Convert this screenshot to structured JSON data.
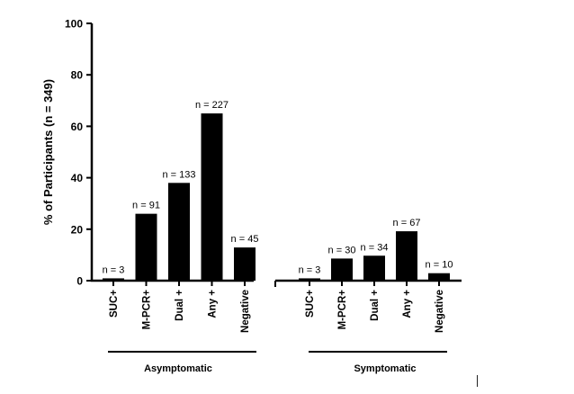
{
  "chart_data": {
    "type": "bar",
    "ylabel": "% of Participants (n = 349)",
    "xlabel": "",
    "ylim": [
      0,
      100
    ],
    "y_ticks": [
      0,
      20,
      40,
      60,
      80,
      100
    ],
    "grid": false,
    "groups": [
      {
        "name": "Asymptomatic",
        "categories": [
          "SUC+",
          "M-PCR+",
          "Dual +",
          "Any +",
          "Negative"
        ],
        "values": [
          0.9,
          26,
          38,
          65,
          12.9
        ],
        "labels": [
          "n = 3",
          "n = 91",
          "n = 133",
          "n = 227",
          "n = 45"
        ]
      },
      {
        "name": "Symptomatic",
        "categories": [
          "SUC+",
          "M-PCR+",
          "Dual +",
          "Any +",
          "Negative"
        ],
        "values": [
          0.9,
          8.6,
          9.7,
          19.2,
          2.9
        ],
        "labels": [
          "n = 3",
          "n = 30",
          "n = 34",
          "n = 67",
          "n = 10"
        ]
      }
    ],
    "colors": {
      "bar": "#000000",
      "axis": "#000000"
    }
  }
}
